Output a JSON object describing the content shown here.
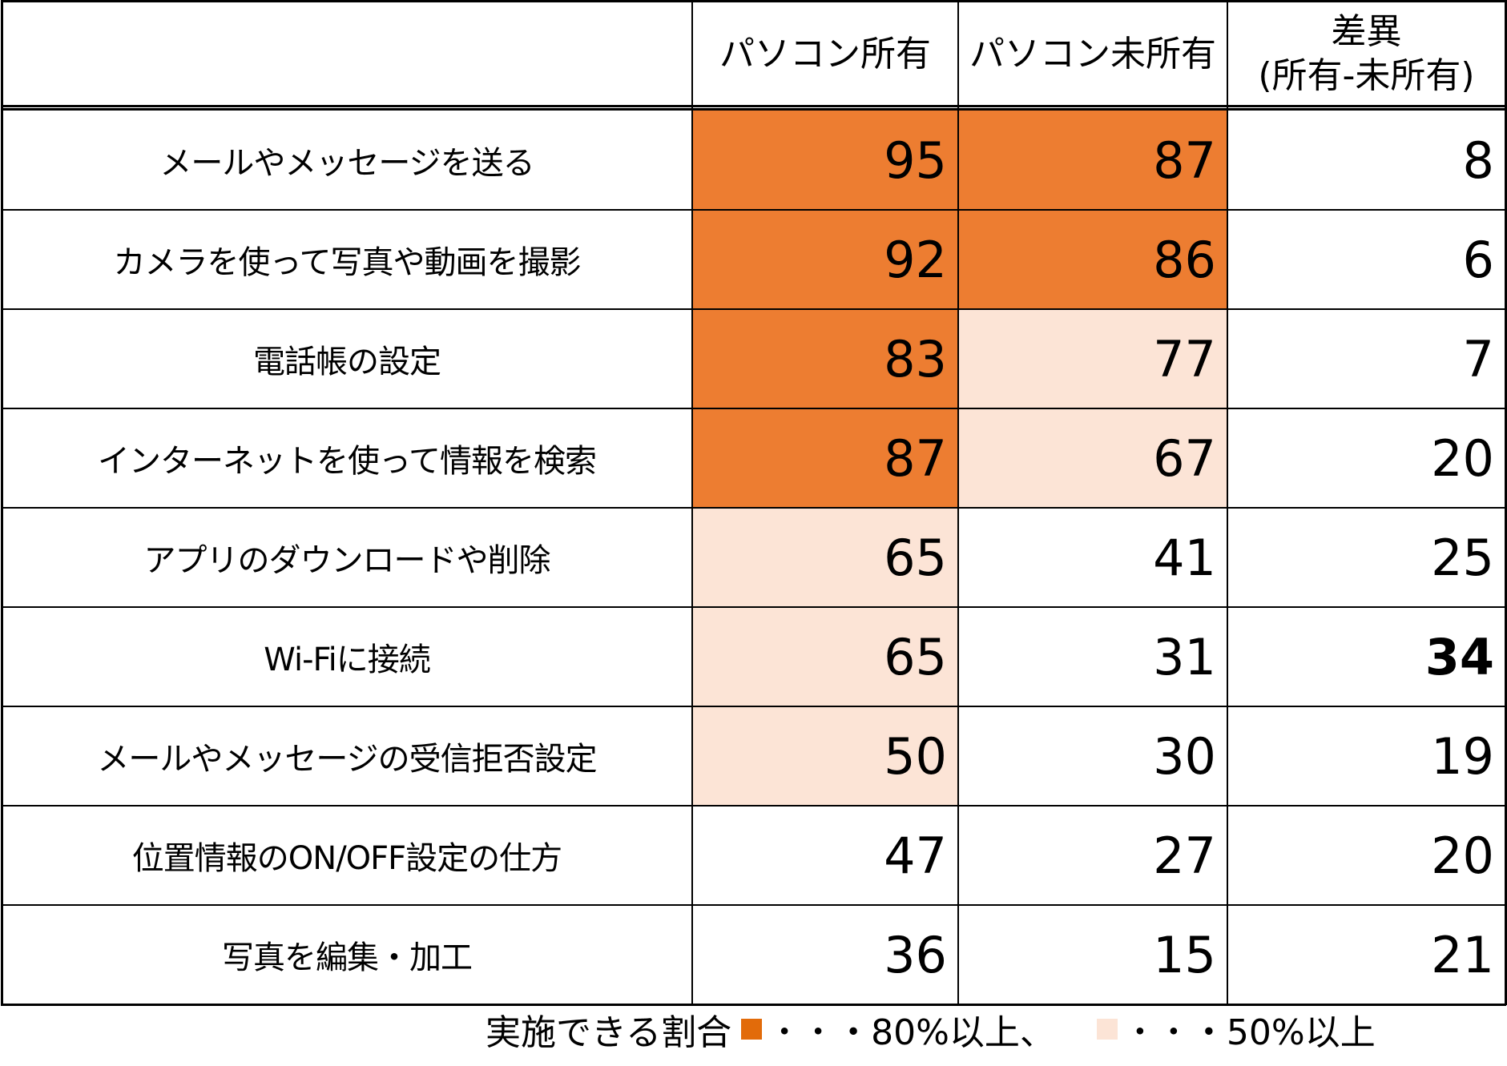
{
  "chart_data": {
    "type": "table",
    "columns": [
      "パソコン所有",
      "パソコン未所有"
    ],
    "diff_header": [
      "差異",
      "(所有-未所有)"
    ],
    "rows": [
      {
        "label": "メールやメッセージを送る",
        "owner": 95,
        "nonowner": 87,
        "diff": "8"
      },
      {
        "label": "カメラを使って写真や動画を撮影",
        "owner": 92,
        "nonowner": 86,
        "diff": "6"
      },
      {
        "label": "電話帳の設定",
        "owner": 83,
        "nonowner": 77,
        "diff": "7"
      },
      {
        "label": "インターネットを使って情報を検索",
        "owner": 87,
        "nonowner": 67,
        "diff": "20"
      },
      {
        "label": "アプリのダウンロードや削除",
        "owner": 65,
        "nonowner": 41,
        "diff": "25"
      },
      {
        "label": "Wi-Fiに接続",
        "owner": 65,
        "nonowner": 31,
        "diff": "34",
        "diff_bold": true
      },
      {
        "label": "メールやメッセージの受信拒否設定",
        "owner": 50,
        "nonowner": 30,
        "diff": "19"
      },
      {
        "label": "位置情報のON/OFF設定の仕方",
        "owner": 47,
        "nonowner": 27,
        "diff": "20"
      },
      {
        "label": "写真を編集・加工",
        "owner": 36,
        "nonowner": 15,
        "diff": "21"
      }
    ],
    "thresholds": {
      "high": 80,
      "mid": 50
    }
  },
  "colors": {
    "high": "#ED7D31",
    "mid": "#FCE4D6",
    "legend_high": "#E26B0A",
    "legend_mid": "#FCE4D6"
  },
  "legend": {
    "prefix": "実施できる割合",
    "dots": "・・",
    "high_text": "・80%以上、",
    "mid_text": "・50%以上"
  }
}
